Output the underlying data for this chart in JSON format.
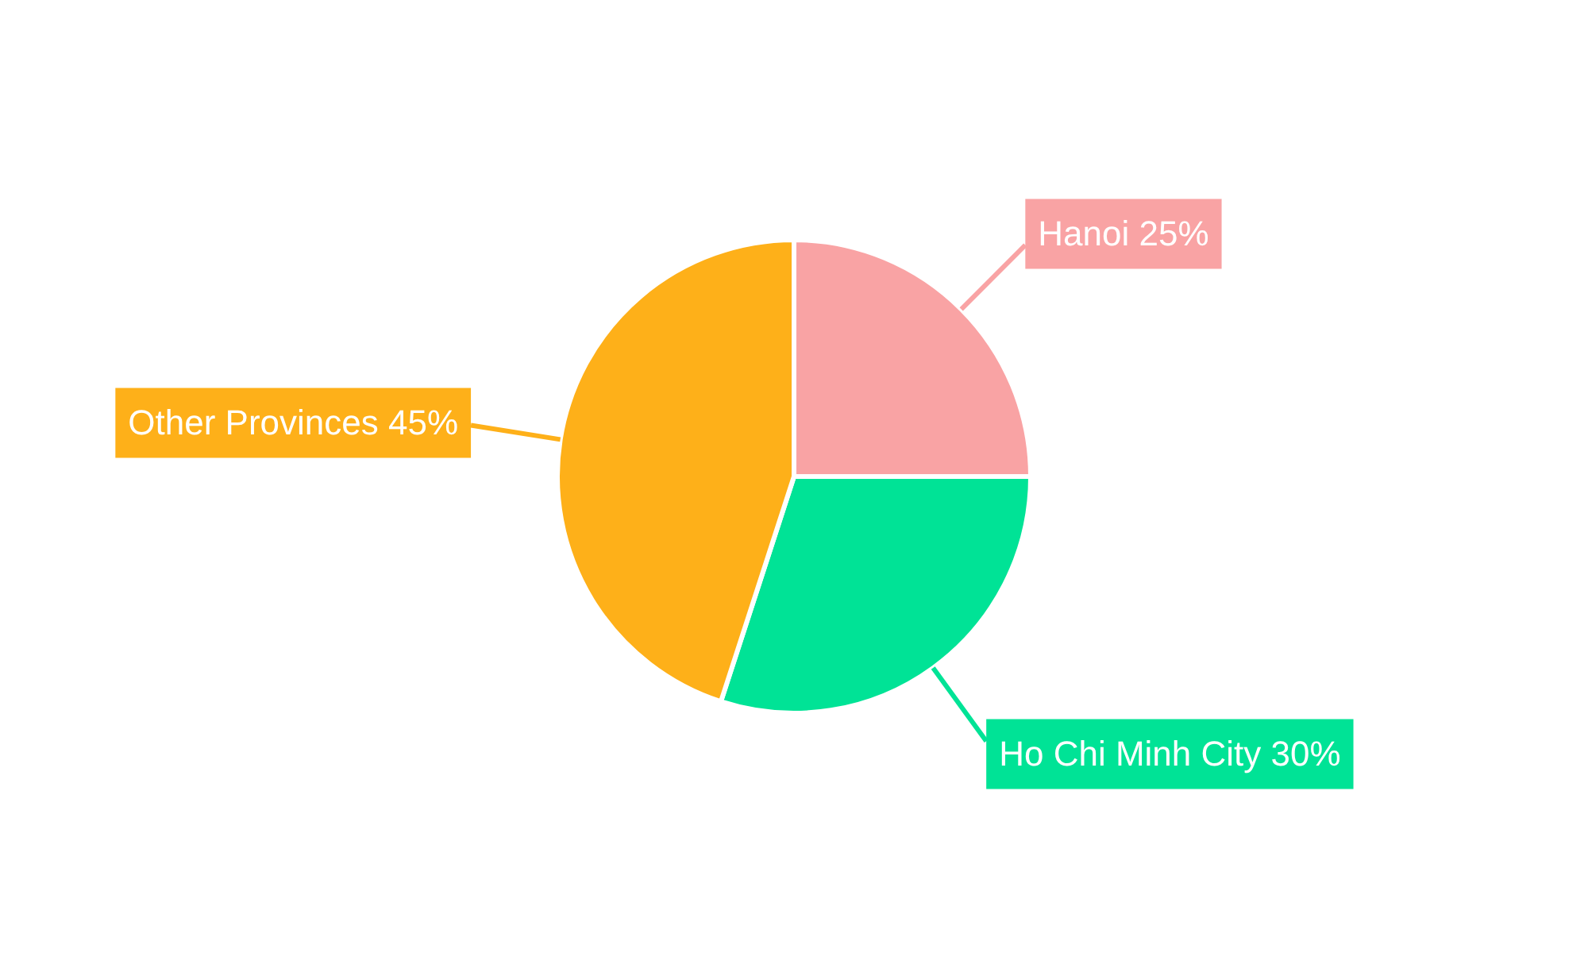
{
  "chart_data": {
    "type": "pie",
    "categories": [
      "Hanoi",
      "Ho Chi Minh City",
      "Other Provinces"
    ],
    "values": [
      25,
      30,
      45
    ],
    "value_labels": [
      "25%",
      "30%",
      "45%"
    ],
    "colors": [
      "#f9a3a4",
      "#00e396",
      "#feb019"
    ],
    "legend": false
  }
}
